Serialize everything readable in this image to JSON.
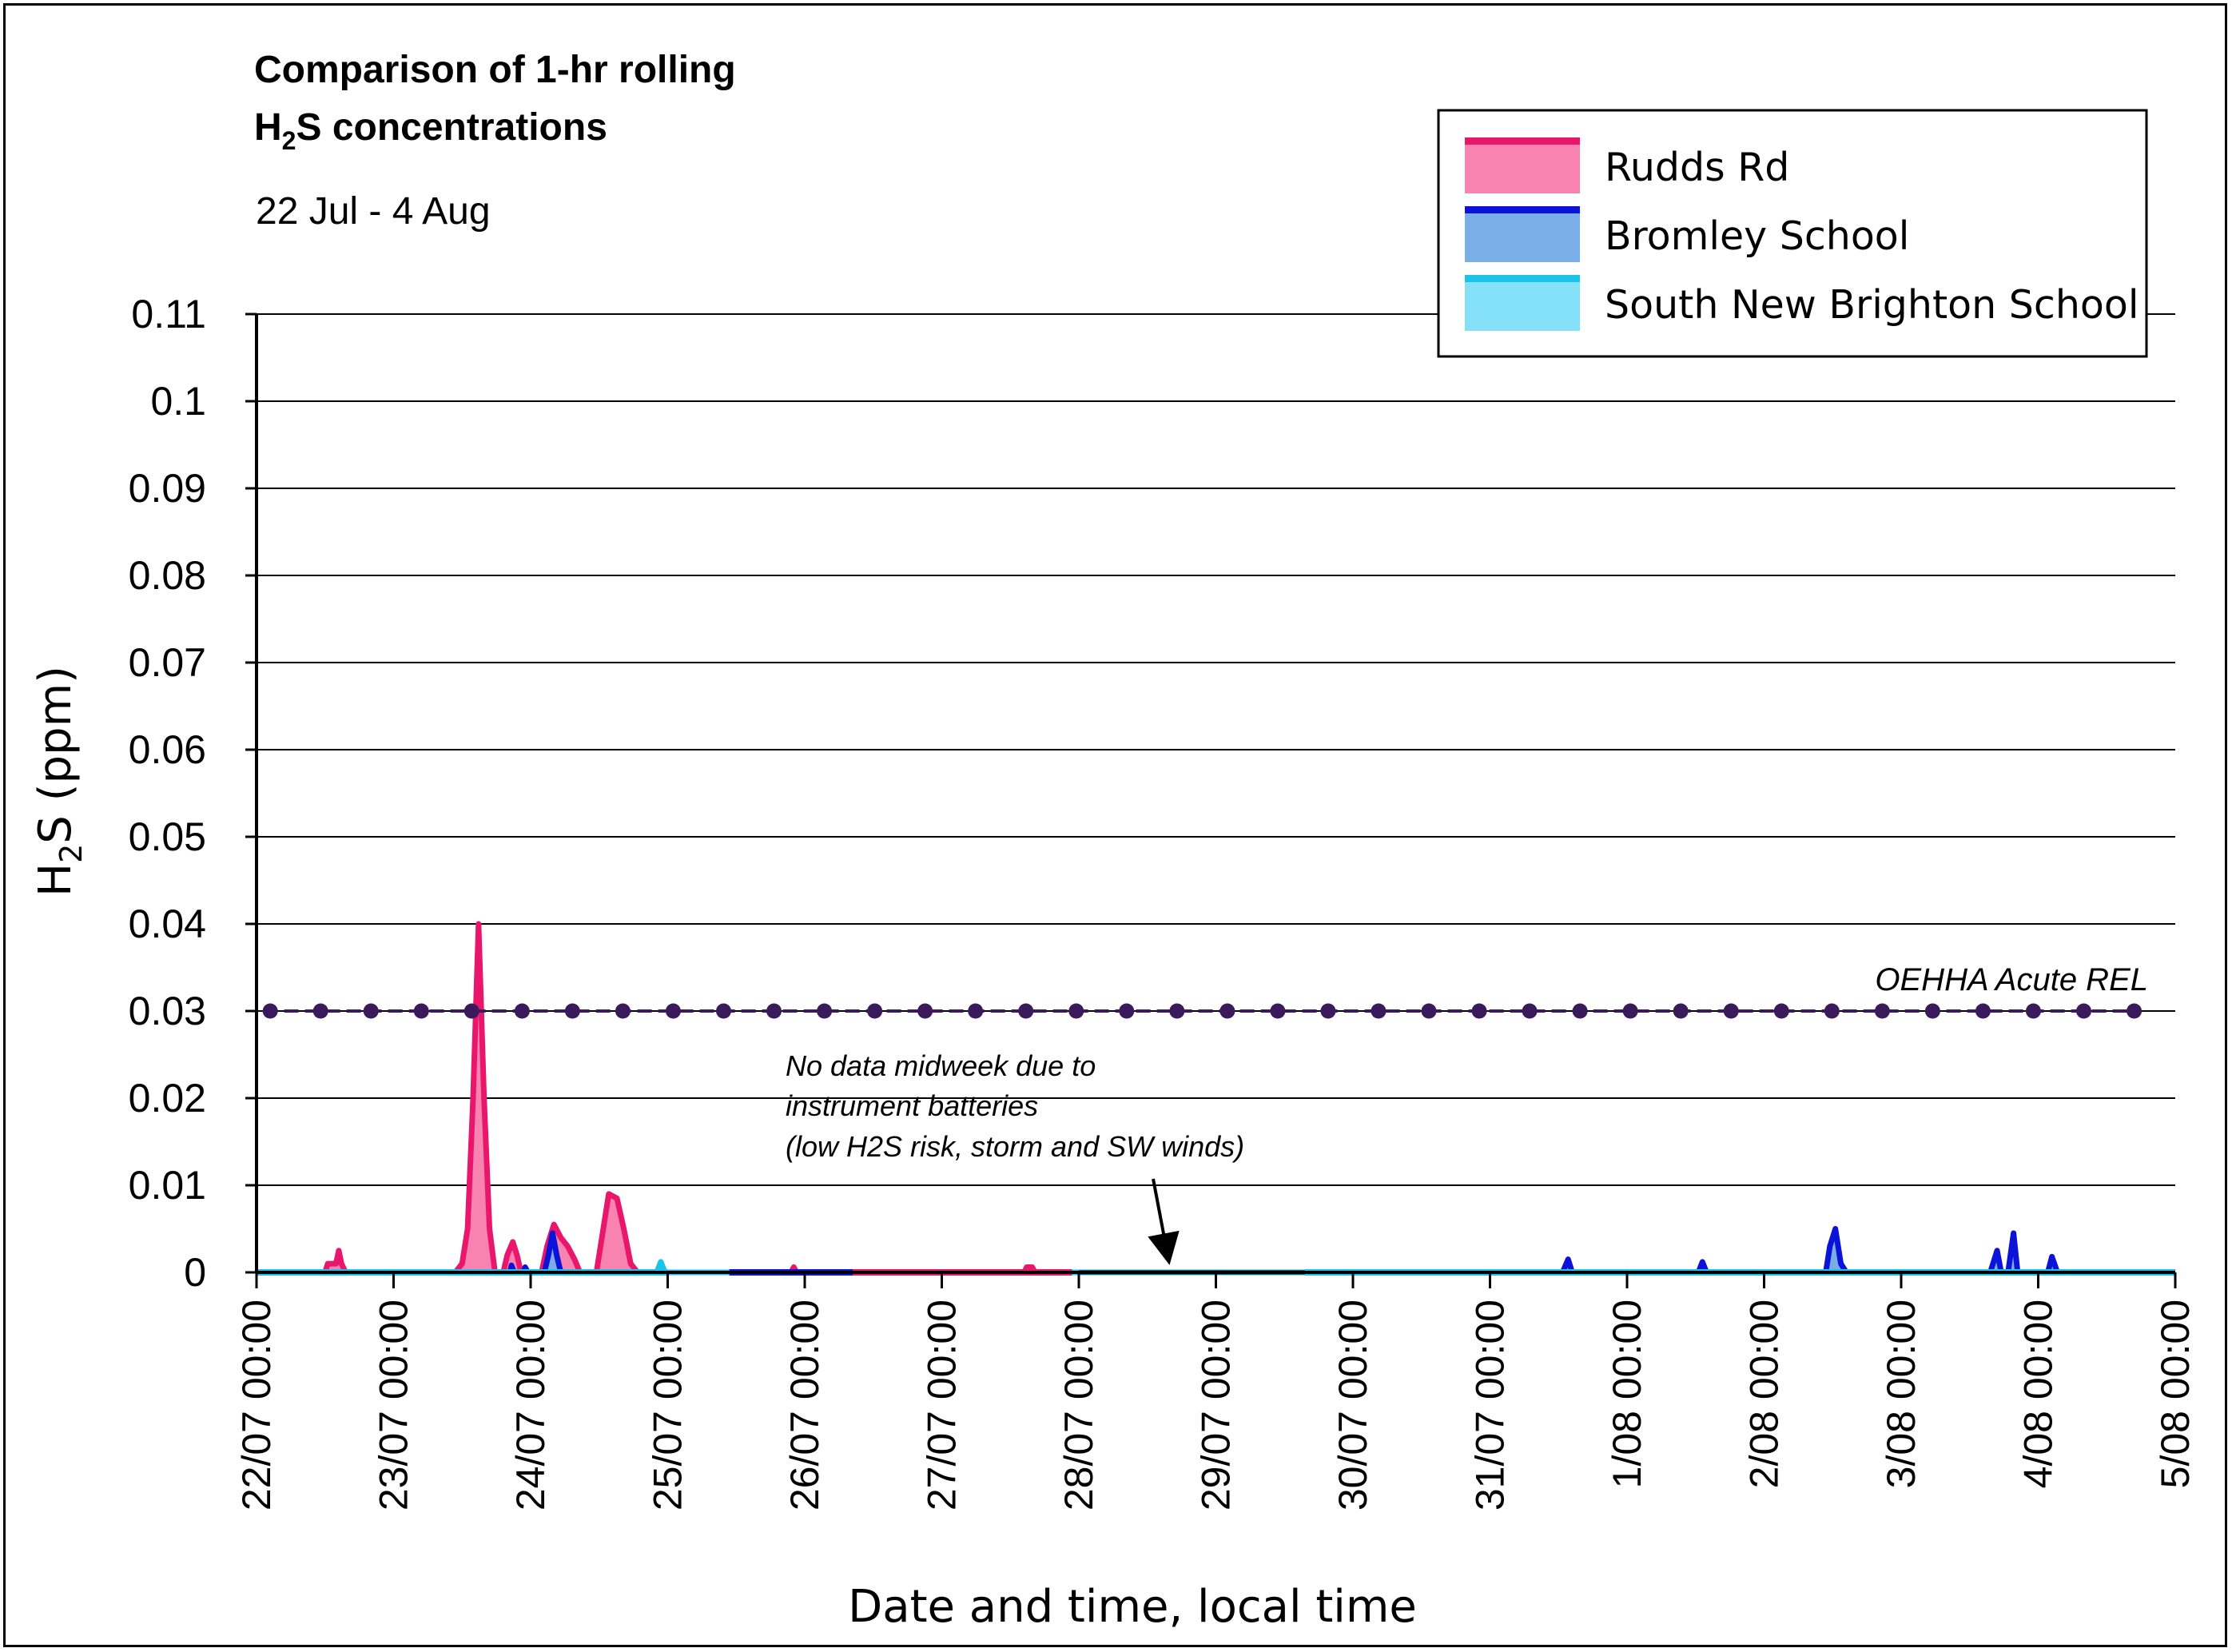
{
  "chart_data": {
    "type": "area",
    "title_line1": "Comparison of 1-hr rolling",
    "title_line2_prefix": "H",
    "title_line2_sub": "2",
    "title_line2_suffix": "S concentrations",
    "subtitle": "22 Jul - 4 Aug",
    "ylabel_prefix": "H",
    "ylabel_sub": "2",
    "ylabel_suffix": "S (ppm)",
    "xlabel": "Date and time, local time",
    "ylim": [
      0,
      0.11
    ],
    "yticks": [
      "0",
      "0.01",
      "0.02",
      "0.03",
      "0.04",
      "0.05",
      "0.06",
      "0.07",
      "0.08",
      "0.09",
      "0.1",
      "0.11"
    ],
    "xlim_days": [
      0,
      14
    ],
    "xticks": [
      "22/07 00:00",
      "23/07 00:00",
      "24/07 00:00",
      "25/07 00:00",
      "26/07 00:00",
      "27/07 00:00",
      "28/07 00:00",
      "29/07 00:00",
      "30/07 00:00",
      "31/07 00:00",
      "1/08 00:00",
      "2/08 00:00",
      "3/08 00:00",
      "4/08 00:00",
      "5/08 00:00"
    ],
    "grid": true,
    "legend_position": "top-right",
    "series": [
      {
        "name": "Rudds Rd",
        "line_color": "#e8176b",
        "fill_color": "#f883b0",
        "points": [
          [
            0,
            0
          ],
          [
            0.5,
            0
          ],
          [
            0.52,
            0.001
          ],
          [
            0.58,
            0.001
          ],
          [
            0.6,
            0.0025
          ],
          [
            0.62,
            0.001
          ],
          [
            0.65,
            0
          ],
          [
            1.45,
            0
          ],
          [
            1.5,
            0.001
          ],
          [
            1.54,
            0.005
          ],
          [
            1.58,
            0.02
          ],
          [
            1.62,
            0.04
          ],
          [
            1.66,
            0.02
          ],
          [
            1.7,
            0.005
          ],
          [
            1.74,
            0
          ],
          [
            1.8,
            0
          ],
          [
            1.83,
            0.002
          ],
          [
            1.87,
            0.0035
          ],
          [
            1.9,
            0.002
          ],
          [
            1.93,
            0
          ],
          [
            2.08,
            0
          ],
          [
            2.12,
            0.003
          ],
          [
            2.17,
            0.0055
          ],
          [
            2.22,
            0.004
          ],
          [
            2.27,
            0.003
          ],
          [
            2.32,
            0.0015
          ],
          [
            2.36,
            0
          ],
          [
            2.48,
            0
          ],
          [
            2.52,
            0.004
          ],
          [
            2.57,
            0.009
          ],
          [
            2.63,
            0.0085
          ],
          [
            2.68,
            0.005
          ],
          [
            2.73,
            0.001
          ],
          [
            2.78,
            0
          ],
          [
            3.9,
            0
          ],
          [
            3.92,
            0.0006
          ],
          [
            3.94,
            0
          ],
          [
            5.6,
            0
          ],
          [
            5.62,
            0.0006
          ],
          [
            5.66,
            0.0006
          ],
          [
            5.68,
            0
          ],
          [
            6.0,
            0
          ]
        ]
      },
      {
        "name": "Bromley School",
        "line_color": "#0b13d9",
        "fill_color": "#7aaee6",
        "points": [
          [
            0,
            0
          ],
          [
            1.85,
            0
          ],
          [
            1.86,
            0.0008
          ],
          [
            1.88,
            0
          ],
          [
            1.95,
            0
          ],
          [
            1.96,
            0.0006
          ],
          [
            1.98,
            0
          ],
          [
            2.1,
            0
          ],
          [
            2.13,
            0.002
          ],
          [
            2.16,
            0.0045
          ],
          [
            2.19,
            0.002
          ],
          [
            2.22,
            0
          ],
          [
            3.0,
            0
          ],
          [
            6.0,
            0
          ],
          [
            7.65,
            0
          ],
          [
            7.7,
            0
          ],
          [
            9.53,
            0
          ],
          [
            9.57,
            0.0015
          ],
          [
            9.6,
            0
          ],
          [
            10.52,
            0
          ],
          [
            10.55,
            0.0012
          ],
          [
            10.58,
            0
          ],
          [
            11.45,
            0
          ],
          [
            11.48,
            0.003
          ],
          [
            11.52,
            0.005
          ],
          [
            11.56,
            0.001
          ],
          [
            11.6,
            0
          ],
          [
            12.65,
            0
          ],
          [
            12.7,
            0.0025
          ],
          [
            12.73,
            0
          ],
          [
            12.78,
            0
          ],
          [
            12.82,
            0.0045
          ],
          [
            12.85,
            0
          ],
          [
            13.07,
            0
          ],
          [
            13.1,
            0.0018
          ],
          [
            13.14,
            0
          ],
          [
            14,
            0
          ]
        ]
      },
      {
        "name": "South New Brighton School",
        "line_color": "#19c3ea",
        "fill_color": "#85e1f8",
        "points": [
          [
            0,
            0
          ],
          [
            2.92,
            0
          ],
          [
            2.95,
            0.0012
          ],
          [
            2.98,
            0
          ],
          [
            14,
            0
          ]
        ]
      }
    ],
    "reference_line": {
      "name": "OEHHA Acute REL",
      "value": 0.03,
      "color": "#3a1a5a"
    },
    "annotation": {
      "line1": "No data midweek due to",
      "line2": "instrument batteries",
      "line3": "(low H2S risk, storm and SW winds)"
    }
  }
}
